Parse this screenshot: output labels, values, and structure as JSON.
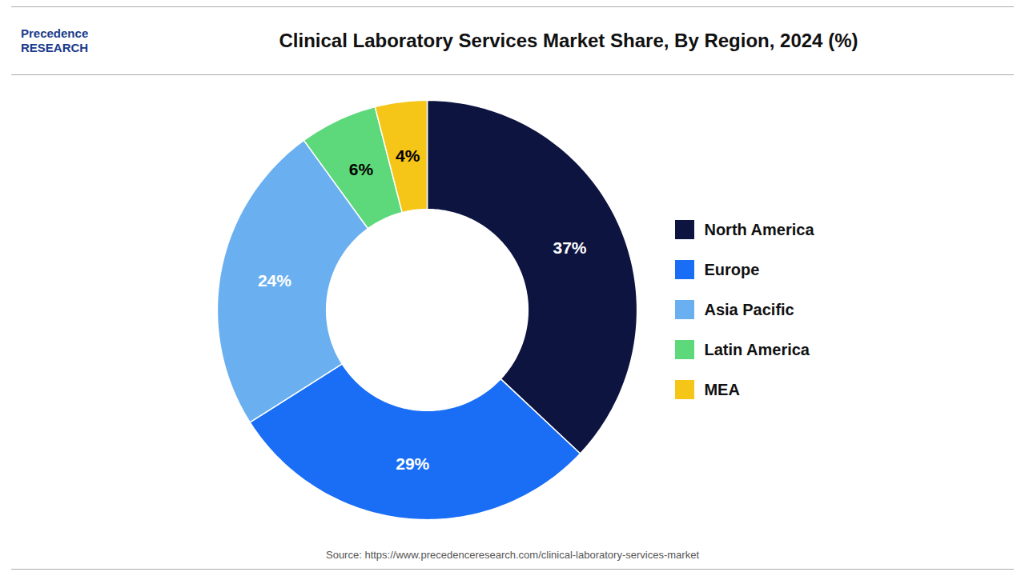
{
  "chart_data": {
    "type": "pie",
    "title": "Clinical Laboratory Services Market Share, By Region, 2024 (%)",
    "categories": [
      "North America",
      "Europe",
      "Asia Pacific",
      "Latin America",
      "MEA"
    ],
    "values": [
      37,
      29,
      24,
      6,
      4
    ],
    "value_labels": [
      "37%",
      "29%",
      "24%",
      "6%",
      "4%"
    ],
    "colors": [
      "#0d1440",
      "#1a6ef5",
      "#6ab0f0",
      "#5dd87a",
      "#f5c518"
    ],
    "data_labels": true,
    "legend": "right",
    "annotations": [
      "Precedence\nRESEARCH",
      "Source: https://www.precedenceresearch.com/clinical-laboratory-services-market"
    ]
  }
}
